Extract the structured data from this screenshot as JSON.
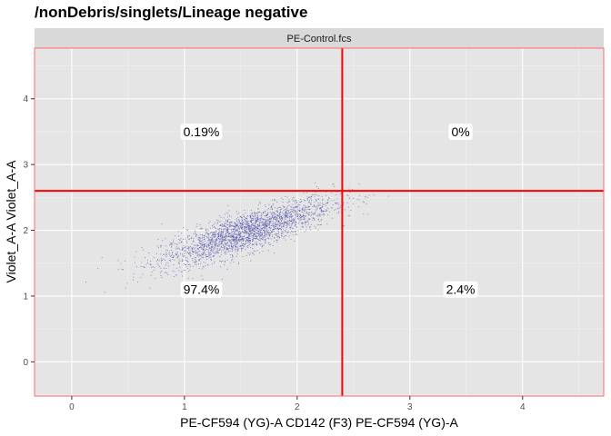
{
  "title": "/nonDebris/singlets/Lineage negative",
  "chart_data": {
    "type": "scatter",
    "facet_label": "PE-Control.fcs",
    "xlabel": "PE-CF594 (YG)-A CD142 (F3) PE-CF594 (YG)-A",
    "ylabel": "Violet_A-A Violet_A-A",
    "xlim": [
      -0.33,
      4.72
    ],
    "ylim": [
      -0.52,
      4.77
    ],
    "x_ticks": [
      {
        "value": 0,
        "label": "0"
      },
      {
        "value": 1,
        "label": "1"
      },
      {
        "value": 2,
        "label": "2"
      },
      {
        "value": 3,
        "label": "3"
      },
      {
        "value": 4,
        "label": "4"
      }
    ],
    "y_ticks": [
      {
        "value": 0,
        "label": "0"
      },
      {
        "value": 1,
        "label": "1"
      },
      {
        "value": 2,
        "label": "2"
      },
      {
        "value": 3,
        "label": "3"
      },
      {
        "value": 4,
        "label": "4"
      }
    ],
    "gate": {
      "x": 2.4,
      "y": 2.6
    },
    "gate_color": "#ff0000",
    "point_color": "#4b4ba8",
    "panel_background": "#e5e5e5",
    "strip_background": "#d9d9d9",
    "quadrants": [
      {
        "position": "top-left",
        "label": "0.19%",
        "x": 1.15,
        "y": 3.5
      },
      {
        "position": "top-right",
        "label": "0%",
        "x": 3.45,
        "y": 3.5
      },
      {
        "position": "bottom-left",
        "label": "97.4%",
        "x": 1.15,
        "y": 1.1
      },
      {
        "position": "bottom-right",
        "label": "2.4%",
        "x": 3.45,
        "y": 1.1
      }
    ],
    "event_distribution": {
      "count": 2600,
      "x_mean": 1.55,
      "x_sd": 0.38,
      "y_intercept": 1.13,
      "y_slope": 0.55,
      "y_sd": 0.15,
      "x_range": [
        0,
        3.0
      ],
      "y_range": [
        0.9,
        2.75
      ]
    }
  }
}
